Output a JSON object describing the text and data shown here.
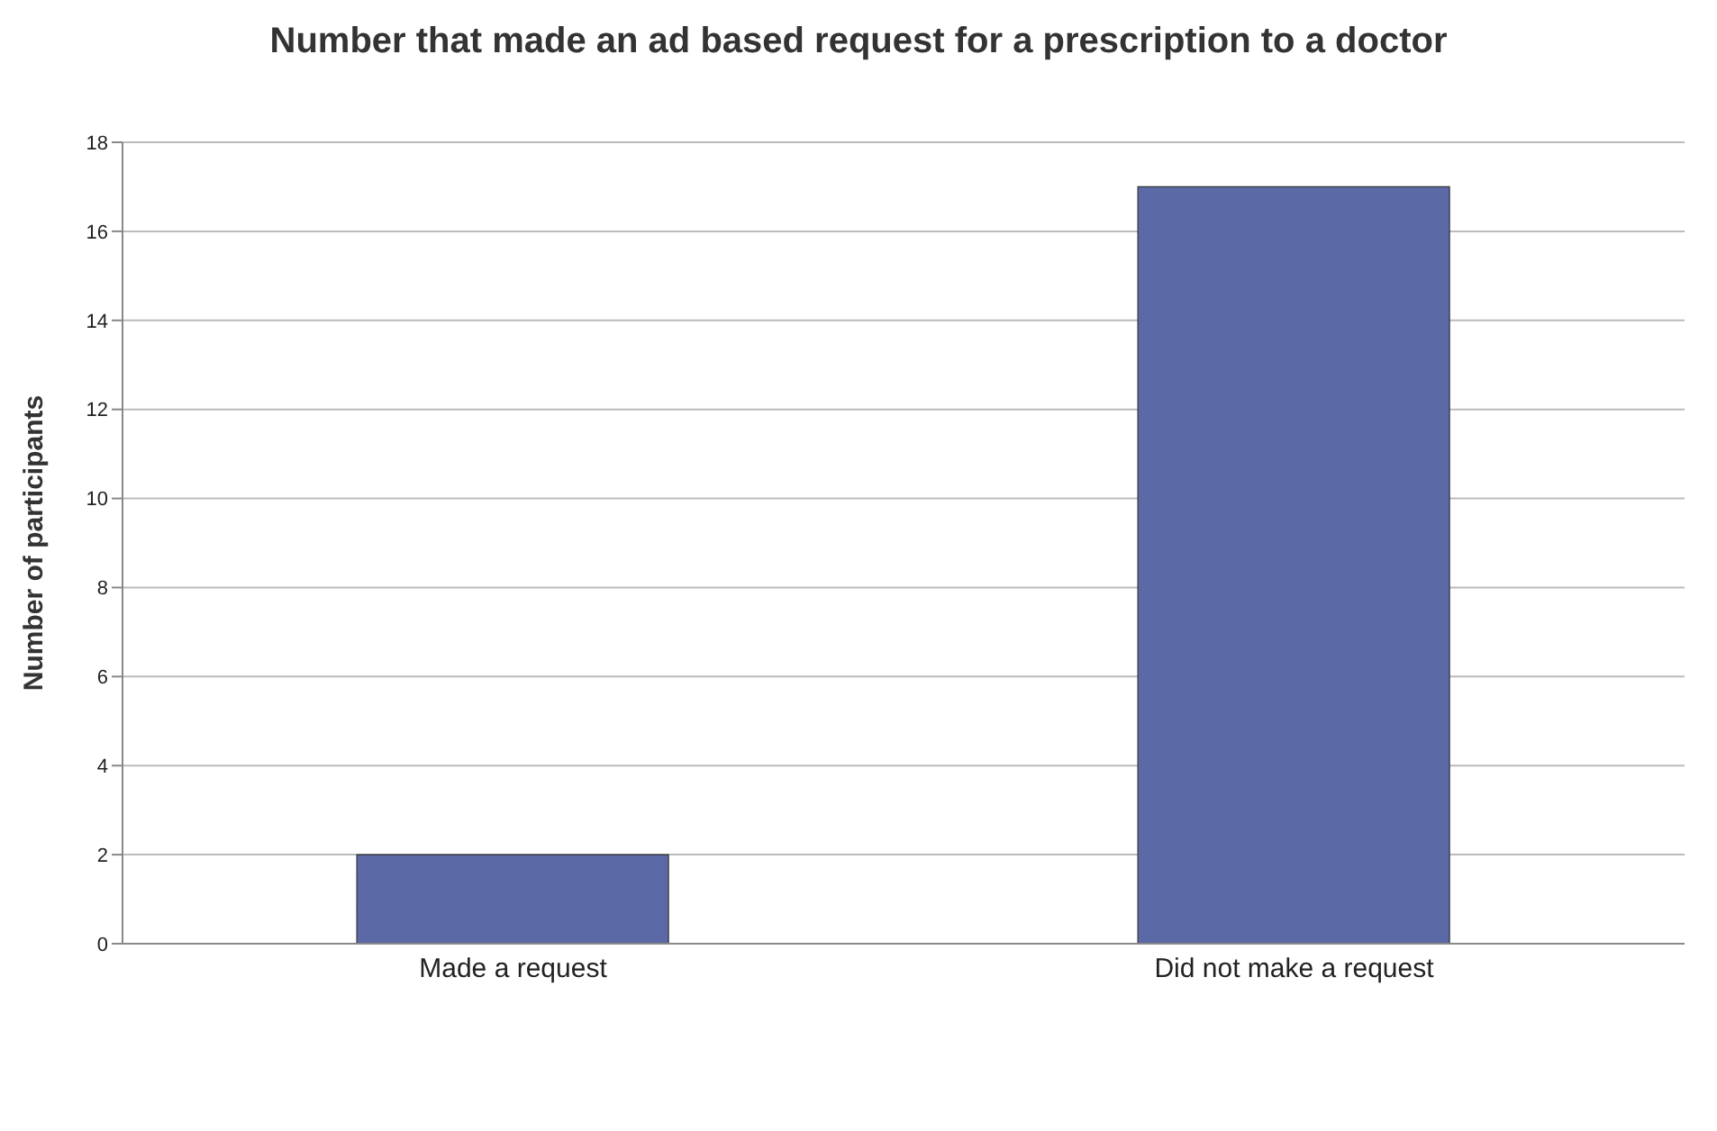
{
  "chart_data": {
    "type": "bar",
    "title": "Number that made an ad based request for a prescription to a doctor",
    "ylabel": "Number of participants",
    "categories": [
      "Made a request",
      "Did not make a request"
    ],
    "values": [
      2,
      17
    ],
    "color": "#5b69a6",
    "ylim": [
      0,
      18
    ],
    "yticks": [
      0,
      2,
      4,
      6,
      8,
      10,
      12,
      14,
      16,
      18
    ],
    "grid": "y",
    "legend": false
  }
}
